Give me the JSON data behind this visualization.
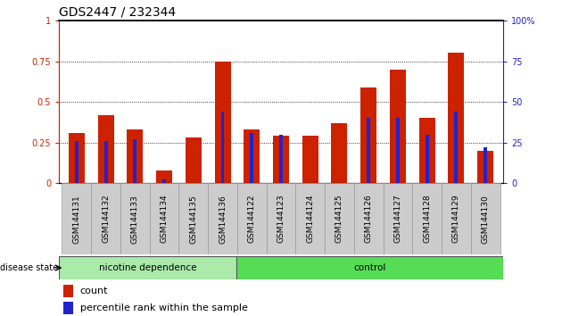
{
  "title": "GDS2447 / 232344",
  "categories": [
    "GSM144131",
    "GSM144132",
    "GSM144133",
    "GSM144134",
    "GSM144135",
    "GSM144136",
    "GSM144122",
    "GSM144123",
    "GSM144124",
    "GSM144125",
    "GSM144126",
    "GSM144127",
    "GSM144128",
    "GSM144129",
    "GSM144130"
  ],
  "count_values": [
    0.31,
    0.42,
    0.33,
    0.08,
    0.28,
    0.75,
    0.33,
    0.29,
    0.29,
    0.37,
    0.59,
    0.7,
    0.4,
    0.8,
    0.2
  ],
  "percentile_values": [
    0.26,
    0.26,
    0.27,
    0.025,
    0.0,
    0.44,
    0.31,
    0.3,
    0.0,
    0.0,
    0.4,
    0.4,
    0.3,
    0.44,
    0.22
  ],
  "group1_label": "nicotine dependence",
  "group2_label": "control",
  "group1_count": 6,
  "group2_count": 9,
  "bar_color_count": "#cc2200",
  "bar_color_pct": "#2222cc",
  "left_axis_color": "#cc2200",
  "right_axis_color": "#2222cc",
  "bg_xticklabels": "#cccccc",
  "group1_bg": "#aaeaaa",
  "group2_bg": "#55dd55",
  "ylim_left": [
    0,
    1.0
  ],
  "ylim_right": [
    0,
    100
  ],
  "yticks_left": [
    0,
    0.25,
    0.5,
    0.75,
    1.0
  ],
  "ytick_labels_left": [
    "0",
    "0.25",
    "0.5",
    "0.75",
    "1"
  ],
  "yticks_right": [
    0,
    25,
    50,
    75,
    100
  ],
  "ytick_labels_right": [
    "0",
    "25",
    "50",
    "75",
    "100%"
  ],
  "legend_count_label": "count",
  "legend_pct_label": "percentile rank within the sample",
  "disease_state_label": "disease state",
  "title_fontsize": 10,
  "tick_fontsize": 7,
  "legend_fontsize": 8
}
